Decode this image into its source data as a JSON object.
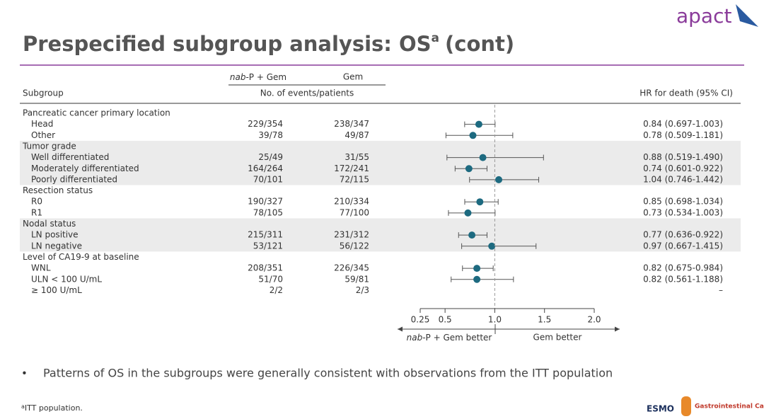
{
  "chart_data": {
    "type": "forest",
    "title": "Prespecified subgroup analysis: OS",
    "title_sup": "a",
    "title_suffix": "(cont)",
    "logo": "apact",
    "arm1_italic": "nab",
    "arm1": "-P + Gem",
    "arm2": "Gem",
    "events_header": "No. of events/patients",
    "subgroup_header": "Subgroup",
    "hr_header": "HR for death (95% CI)",
    "groups": [
      {
        "name": "Pancreatic cancer primary location",
        "shaded": false,
        "rows": [
          {
            "label": "Head",
            "arm1": "229/354",
            "arm2": "238/347",
            "hr": 0.84,
            "ci": [
              0.697,
              1.003
            ],
            "value_label": "0.84 (0.697-1.003)"
          },
          {
            "label": "Other",
            "arm1": "39/78",
            "arm2": "49/87",
            "hr": 0.78,
            "ci": [
              0.509,
              1.181
            ],
            "value_label": "0.78 (0.509-1.181)"
          }
        ]
      },
      {
        "name": "Tumor grade",
        "shaded": true,
        "rows": [
          {
            "label": "Well differentiated",
            "arm1": "25/49",
            "arm2": "31/55",
            "hr": 0.88,
            "ci": [
              0.519,
              1.49
            ],
            "value_label": "0.88 (0.519-1.490)"
          },
          {
            "label": "Moderately differentiated",
            "arm1": "164/264",
            "arm2": "172/241",
            "hr": 0.74,
            "ci": [
              0.601,
              0.922
            ],
            "value_label": "0.74 (0.601-0.922)"
          },
          {
            "label": "Poorly differentiated",
            "arm1": "70/101",
            "arm2": "72/115",
            "hr": 1.04,
            "ci": [
              0.746,
              1.442
            ],
            "value_label": "1.04 (0.746-1.442)"
          }
        ]
      },
      {
        "name": "Resection status",
        "shaded": false,
        "rows": [
          {
            "label": "R0",
            "arm1": "190/327",
            "arm2": "210/334",
            "hr": 0.85,
            "ci": [
              0.698,
              1.034
            ],
            "value_label": "0.85 (0.698-1.034)"
          },
          {
            "label": "R1",
            "arm1": "78/105",
            "arm2": "77/100",
            "hr": 0.73,
            "ci": [
              0.534,
              1.003
            ],
            "value_label": "0.73 (0.534-1.003)"
          }
        ]
      },
      {
        "name": "Nodal status",
        "shaded": true,
        "rows": [
          {
            "label": "LN positive",
            "arm1": "215/311",
            "arm2": "231/312",
            "hr": 0.77,
            "ci": [
              0.636,
              0.922
            ],
            "value_label": "0.77 (0.636-0.922)"
          },
          {
            "label": "LN negative",
            "arm1": "53/121",
            "arm2": "56/122",
            "hr": 0.97,
            "ci": [
              0.667,
              1.415
            ],
            "value_label": "0.97 (0.667-1.415)"
          }
        ]
      },
      {
        "name": "Level of CA19-9 at baseline",
        "shaded": false,
        "rows": [
          {
            "label": "WNL",
            "arm1": "208/351",
            "arm2": "226/345",
            "hr": 0.82,
            "ci": [
              0.675,
              0.984
            ],
            "value_label": "0.82 (0.675-0.984)"
          },
          {
            "label": "ULN < 100 U/mL",
            "arm1": "51/70",
            "arm2": "59/81",
            "hr": 0.82,
            "ci": [
              0.561,
              1.188
            ],
            "value_label": "0.82 (0.561-1.188)"
          },
          {
            "label": "≥ 100 U/mL",
            "arm1": "2/2",
            "arm2": "2/3",
            "hr": null,
            "ci": null,
            "value_label": "–"
          }
        ]
      }
    ],
    "color": "#1d6a80",
    "xlim": [
      0.25,
      2.0
    ],
    "xticks": [
      0.25,
      0.5,
      {
        "value": 1,
        "label": "1.0"
      },
      1.5,
      {
        "value": 2,
        "label": "2.0"
      }
    ],
    "reference": 1,
    "better_left_italic": "nab",
    "better_left": "-P + Gem better",
    "better_right": "Gem better",
    "bullet": "Patterns of OS in the subgroups were generally consistent with observations from the ITT population",
    "footnote_sup": "a",
    "footnote": "ITT population.",
    "esmo_logo": "ESMO",
    "congress_logo": "Gastrointestinal Cancer"
  }
}
